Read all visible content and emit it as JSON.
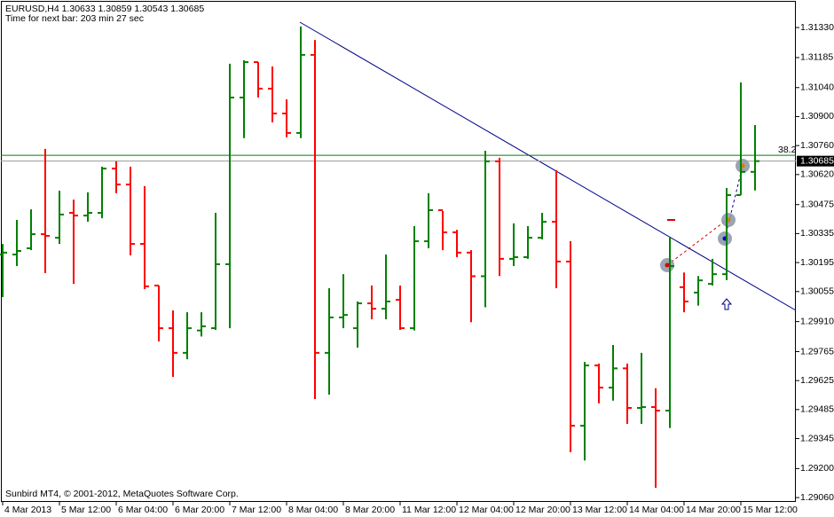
{
  "chart_data": {
    "type": "ohlc",
    "title": "EURUSD,H4  1.30633 1.30859 1.30543 1.30685",
    "subtitle": "Time for next bar: 203 min 27 sec",
    "footer": "Sunbird MT4, © 2001-2012, MetaQuotes Software Corp.",
    "categories": [
      "4 Mar 2013",
      null,
      null,
      null,
      "5 Mar 12:00",
      null,
      null,
      null,
      "6 Mar 04:00",
      null,
      null,
      null,
      "6 Mar 20:00",
      null,
      null,
      null,
      "7 Mar 12:00",
      null,
      null,
      null,
      "8 Mar 04:00",
      null,
      null,
      null,
      "8 Mar 20:00",
      null,
      null,
      null,
      "11 Mar 12:00",
      null,
      null,
      null,
      "12 Mar 04:00",
      null,
      null,
      null,
      "12 Mar 20:00",
      null,
      null,
      null,
      "13 Mar 12:00",
      null,
      null,
      null,
      "14 Mar 04:00",
      null,
      null,
      null,
      "14 Mar 20:00",
      null,
      null,
      null,
      "15 Mar 12:00",
      null
    ],
    "open": [
      1.30234,
      1.30234,
      1.30264,
      1.30332,
      1.30315,
      1.30435,
      1.30422,
      1.30435,
      1.30649,
      1.30572,
      1.30285,
      1.30084,
      1.29878,
      1.29759,
      1.29867,
      1.29878,
      1.30187,
      1.30992,
      1.31163,
      1.31035,
      1.30915,
      1.30821,
      1.31198,
      1.29759,
      1.2993,
      1.29878,
      1.29998,
      1.29972,
      1.30015,
      1.29878,
      1.30298,
      1.30448,
      1.30341,
      1.30243,
      1.30129,
      1.30684,
      1.30213,
      1.30221,
      1.30315,
      1.30392,
      1.302,
      1.29407,
      1.29698,
      1.29591,
      1.29684,
      1.29493,
      1.29497,
      1.2948,
      1.30076,
      1.3005,
      1.30092,
      1.30139,
      1.30521,
      1.30633
    ],
    "high": [
      1.30285,
      1.30401,
      1.30452,
      1.30744,
      1.30542,
      1.30499,
      1.30534,
      1.30658,
      1.30684,
      1.30658,
      1.30564,
      1.30084,
      1.29964,
      1.29955,
      1.29955,
      1.30435,
      1.31155,
      1.31172,
      1.31163,
      1.31142,
      1.30983,
      1.31335,
      1.3127,
      1.30071,
      1.30139,
      1.30007,
      1.30084,
      1.30234,
      1.30084,
      1.30371,
      1.3053,
      1.30444,
      1.30353,
      1.30255,
      1.30735,
      1.30701,
      1.30384,
      1.30371,
      1.30435,
      1.30641,
      1.30298,
      1.29715,
      1.29707,
      1.29797,
      1.29707,
      1.29759,
      1.29588,
      1.30315,
      1.30147,
      1.3013,
      1.30213,
      1.30555,
      1.31065,
      1.30859
    ],
    "low": [
      1.30028,
      1.30178,
      1.30255,
      1.30144,
      1.30285,
      1.30092,
      1.30392,
      1.30409,
      1.3053,
      1.3023,
      1.30067,
      1.29814,
      1.29643,
      1.29728,
      1.29838,
      1.2987,
      1.29878,
      1.30796,
      1.30992,
      1.30872,
      1.308,
      1.30796,
      1.29536,
      1.29557,
      1.29878,
      1.29784,
      1.29921,
      1.29921,
      1.2987,
      1.29867,
      1.30264,
      1.30255,
      1.30221,
      1.29907,
      1.29979,
      1.3013,
      1.30178,
      1.30213,
      1.30307,
      1.30071,
      1.29279,
      1.29239,
      1.29515,
      1.29528,
      1.29416,
      1.29416,
      1.29107,
      1.29396,
      1.29955,
      1.29987,
      1.30084,
      1.3011,
      1.30521,
      1.30543
    ],
    "close": [
      1.30243,
      1.30251,
      1.30332,
      1.30324,
      1.30427,
      1.30422,
      1.30435,
      1.30649,
      1.30572,
      1.30285,
      1.3008,
      1.29878,
      1.29759,
      1.29878,
      1.29887,
      1.30187,
      1.30992,
      1.31163,
      1.31035,
      1.30915,
      1.30821,
      1.31198,
      1.29759,
      1.2993,
      1.29942,
      1.29998,
      1.29972,
      1.30007,
      1.29878,
      1.30298,
      1.30448,
      1.30341,
      1.30243,
      1.30129,
      1.30684,
      1.30213,
      1.30221,
      1.30315,
      1.30392,
      1.302,
      1.29407,
      1.29698,
      1.29591,
      1.29684,
      1.29493,
      1.29497,
      1.2948,
      1.30178,
      1.30007,
      1.30109,
      1.30139,
      1.30521,
      1.30633,
      1.30685
    ],
    "up_color": "#008000",
    "down_color": "#ff0000",
    "ylim": [
      1.29039,
      1.31463
    ],
    "yticks": [
      {
        "value": 1.3133,
        "label": "1.31330"
      },
      1.31185,
      {
        "value": 1.3104,
        "label": "1.31040"
      },
      {
        "value": 1.309,
        "label": "1.30900"
      },
      {
        "value": 1.3076,
        "label": "1.30760"
      },
      {
        "value": 1.3062,
        "label": "1.30620"
      },
      1.30475,
      1.30335,
      1.30195,
      1.30055,
      {
        "value": 1.2991,
        "label": "1.29910"
      },
      1.29765,
      1.29625,
      1.29485,
      1.29345,
      {
        "value": 1.292,
        "label": "1.29200"
      },
      {
        "value": 1.2906,
        "label": "1.29060"
      }
    ],
    "current_price": 1.30685,
    "fib_level": {
      "label": "38.2",
      "value": 1.30713,
      "color": "#008000"
    },
    "grid": false
  }
}
